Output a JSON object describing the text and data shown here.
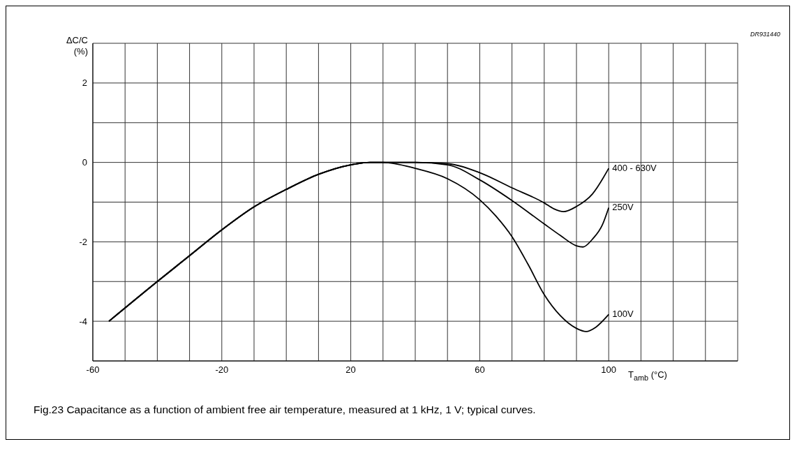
{
  "chart_data": {
    "type": "line",
    "xlabel": "T$_{amb}$ (°C)",
    "ylabel": "ΔC/C (%)",
    "annotations": [
      "DR931440",
      "Fig.23  Capacitance as a function of ambient free air temperature, measured at 1 kHz, 1 V; typical curves."
    ],
    "xlim": [
      -60,
      140
    ],
    "xticks": [
      -60,
      {
        "value": -50,
        "label": null
      },
      {
        "value": -40,
        "label": null
      },
      {
        "value": -30,
        "label": null
      },
      -20,
      {
        "value": -10,
        "label": null
      },
      {
        "value": 0,
        "label": null
      },
      {
        "value": 10,
        "label": null
      },
      20,
      {
        "value": 30,
        "label": null
      },
      {
        "value": 40,
        "label": null
      },
      {
        "value": 50,
        "label": null
      },
      60,
      {
        "value": 70,
        "label": null
      },
      {
        "value": 80,
        "label": null
      },
      {
        "value": 90,
        "label": null
      },
      100,
      {
        "value": 110,
        "label": null
      },
      {
        "value": 120,
        "label": null
      },
      {
        "value": 130,
        "label": null
      },
      {
        "value": 140,
        "label": null
      }
    ],
    "ylim": [
      -5,
      3
    ],
    "yticks": [
      {
        "value": -5,
        "label": null
      },
      -4,
      {
        "value": -3,
        "label": null
      },
      -2,
      {
        "value": -1,
        "label": null
      },
      0,
      {
        "value": 1,
        "label": null
      },
      2,
      {
        "value": 3,
        "label": null
      }
    ],
    "grid": true,
    "marker": "none",
    "line_style": "solid",
    "series": [
      {
        "name": "400 - 630V",
        "color": "#000000",
        "x": [
          -55,
          -40,
          -30,
          -20,
          -10,
          0,
          10,
          20,
          26,
          30,
          40,
          50,
          60,
          70,
          80,
          83,
          86,
          90,
          95,
          100
        ],
        "values": [
          -4.0,
          -3.0,
          -2.35,
          -1.7,
          -1.12,
          -0.68,
          -0.3,
          -0.06,
          0,
          0,
          0,
          -0.03,
          -0.26,
          -0.64,
          -1.02,
          -1.17,
          -1.24,
          -1.11,
          -0.79,
          -0.15
        ]
      },
      {
        "name": "250V",
        "color": "#000000",
        "x": [
          -55,
          -40,
          -30,
          -20,
          -10,
          0,
          10,
          20,
          26,
          30,
          40,
          50,
          60,
          70,
          80,
          85,
          90,
          92,
          95,
          98,
          100
        ],
        "values": [
          -4.0,
          -3.0,
          -2.35,
          -1.7,
          -1.12,
          -0.68,
          -0.3,
          -0.06,
          0,
          0,
          0,
          -0.06,
          -0.44,
          -0.96,
          -1.55,
          -1.84,
          -2.1,
          -2.13,
          -1.93,
          -1.58,
          -1.14
        ]
      },
      {
        "name": "100V",
        "color": "#000000",
        "x": [
          -55,
          -40,
          -30,
          -20,
          -10,
          0,
          10,
          20,
          26,
          30,
          40,
          50,
          60,
          65,
          70,
          75,
          80,
          85,
          90,
          93,
          96,
          100
        ],
        "values": [
          -4.0,
          -3.0,
          -2.35,
          -1.7,
          -1.12,
          -0.68,
          -0.3,
          -0.06,
          0,
          0,
          -0.15,
          -0.41,
          -0.94,
          -1.35,
          -1.87,
          -2.57,
          -3.33,
          -3.86,
          -4.18,
          -4.26,
          -4.15,
          -3.83
        ]
      }
    ]
  }
}
